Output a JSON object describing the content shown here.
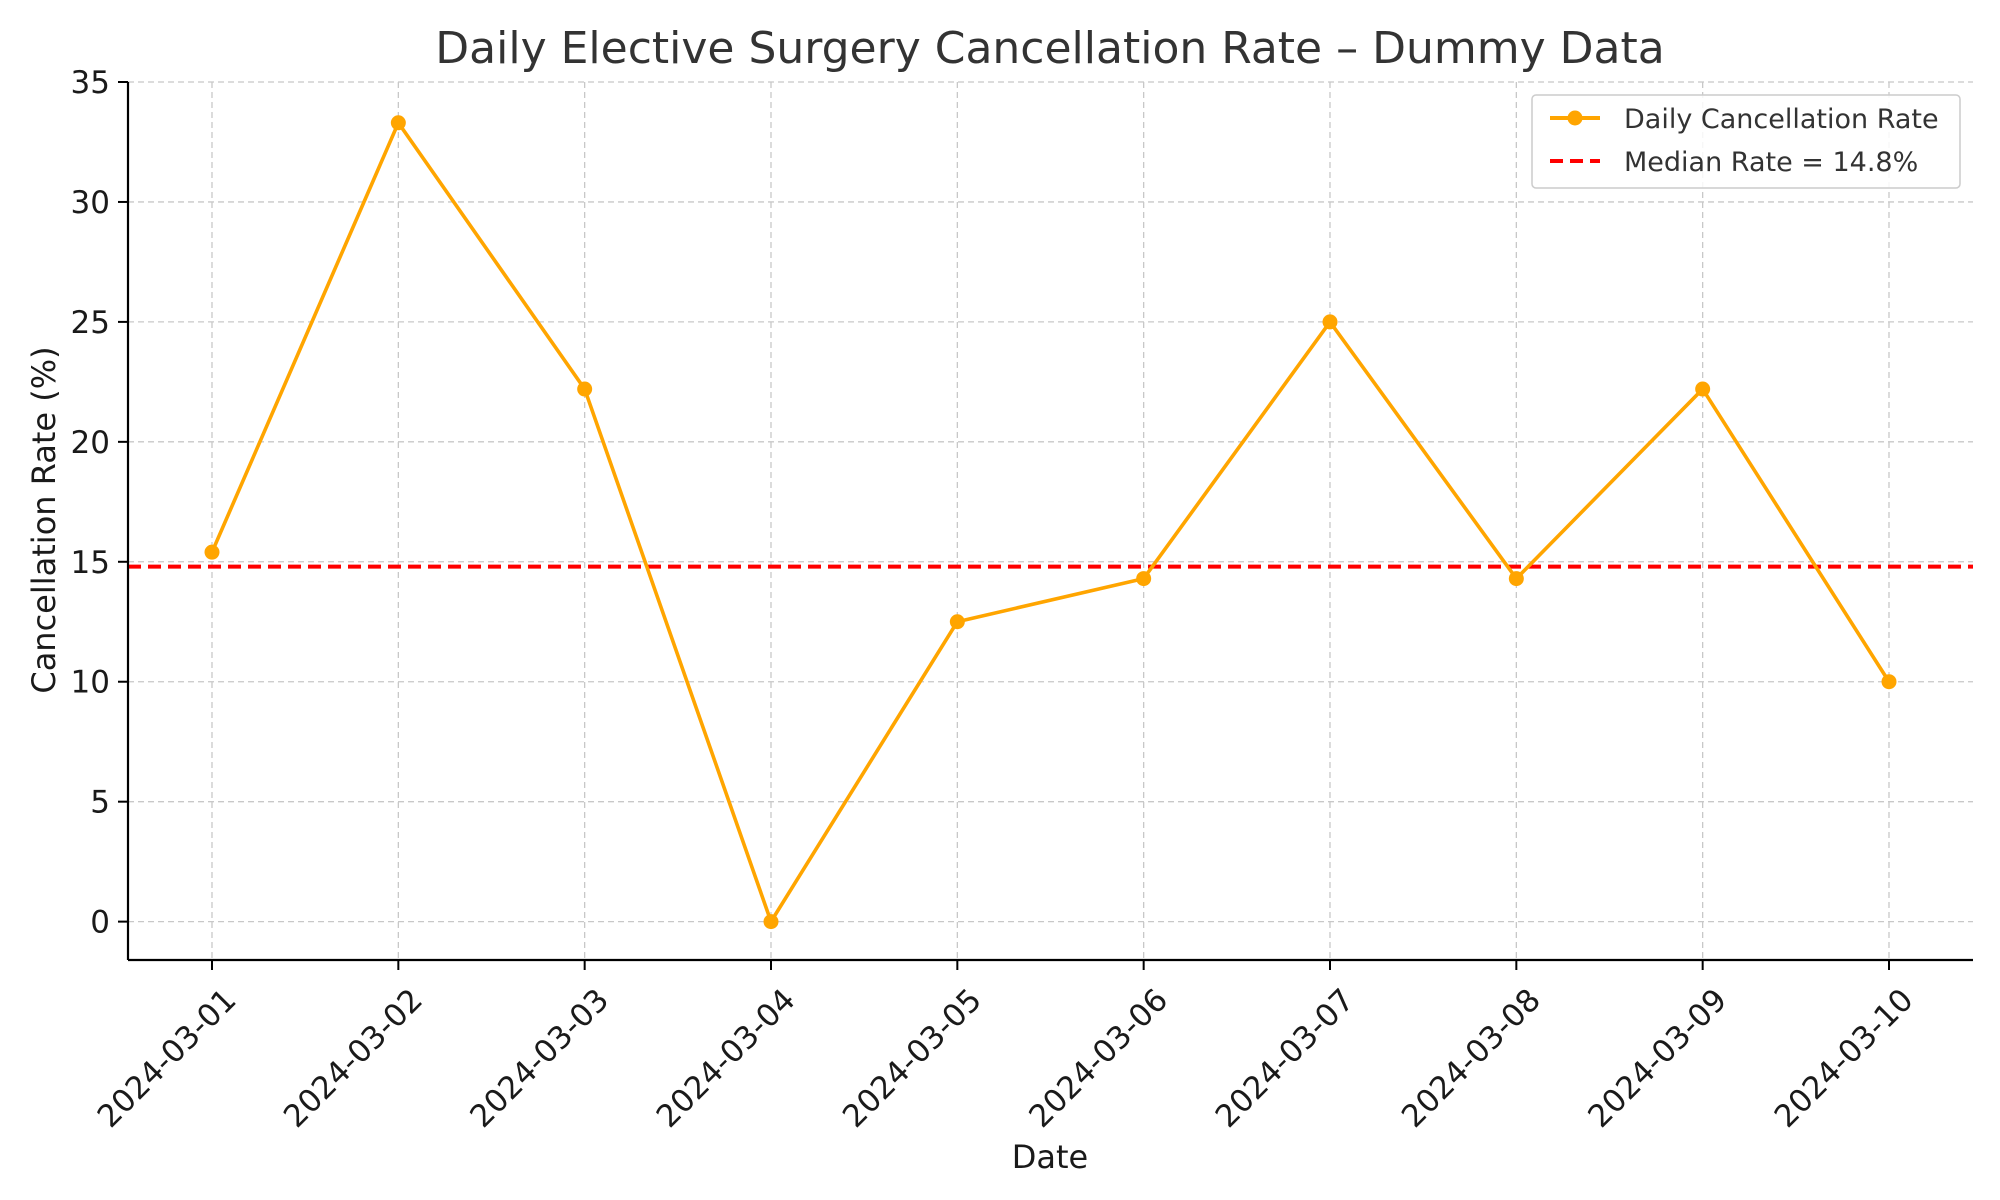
{
  "chart_data": {
    "type": "line",
    "title": "Daily Elective Surgery Cancellation Rate – Dummy Data",
    "xlabel": "Date",
    "ylabel": "Cancellation Rate (%)",
    "x": [
      "2024-03-01",
      "2024-03-02",
      "2024-03-03",
      "2024-03-04",
      "2024-03-05",
      "2024-03-06",
      "2024-03-07",
      "2024-03-08",
      "2024-03-09",
      "2024-03-10"
    ],
    "ylim": [
      -1.6,
      35
    ],
    "yticks": [
      0,
      5,
      10,
      15,
      20,
      25,
      30,
      35
    ],
    "grid": true,
    "legend_position": "top-right",
    "series": [
      {
        "name": "Daily Cancellation Rate",
        "style": "solid line with circle markers",
        "color": "#FFA500",
        "values": [
          15.4,
          33.3,
          22.2,
          0.0,
          12.5,
          14.3,
          25.0,
          14.3,
          22.2,
          10.0
        ]
      }
    ],
    "reference_lines": [
      {
        "name": "Median Rate = 14.8%",
        "value": 14.8,
        "style": "dashed",
        "color": "#FF0000"
      }
    ]
  }
}
